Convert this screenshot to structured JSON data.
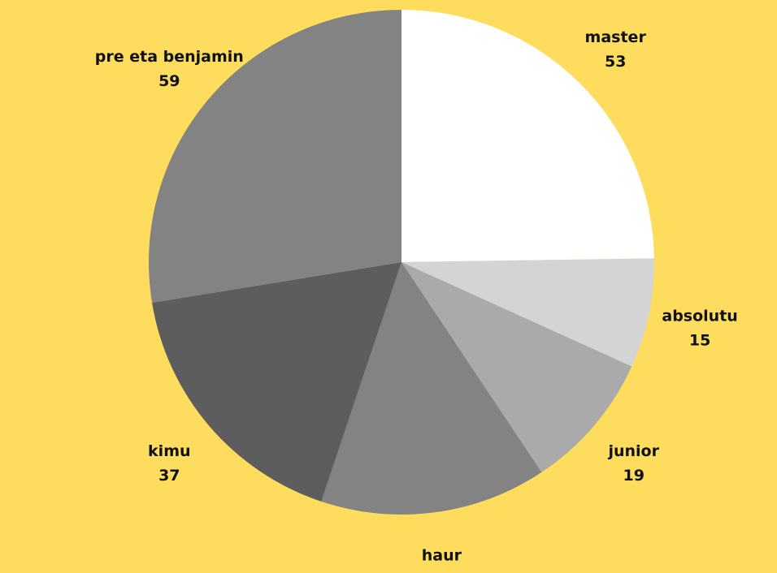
{
  "background": "#FEDD5E",
  "chart_data": {
    "type": "pie",
    "start_angle_deg": 0,
    "direction": "clockwise",
    "slices": [
      {
        "label": "master",
        "value": 53,
        "color": "#FFFFFF"
      },
      {
        "label": "absolutu",
        "value": 15,
        "color": "#D4D4D4"
      },
      {
        "label": "junior",
        "value": 19,
        "color": "#AAAAAA"
      },
      {
        "label": "haur",
        "value": 31,
        "color": "#838383"
      },
      {
        "label": "kimu",
        "value": 37,
        "color": "#5D5D5D"
      },
      {
        "label": "pre eta benjamin",
        "value": 59,
        "color": "#838383"
      }
    ]
  }
}
